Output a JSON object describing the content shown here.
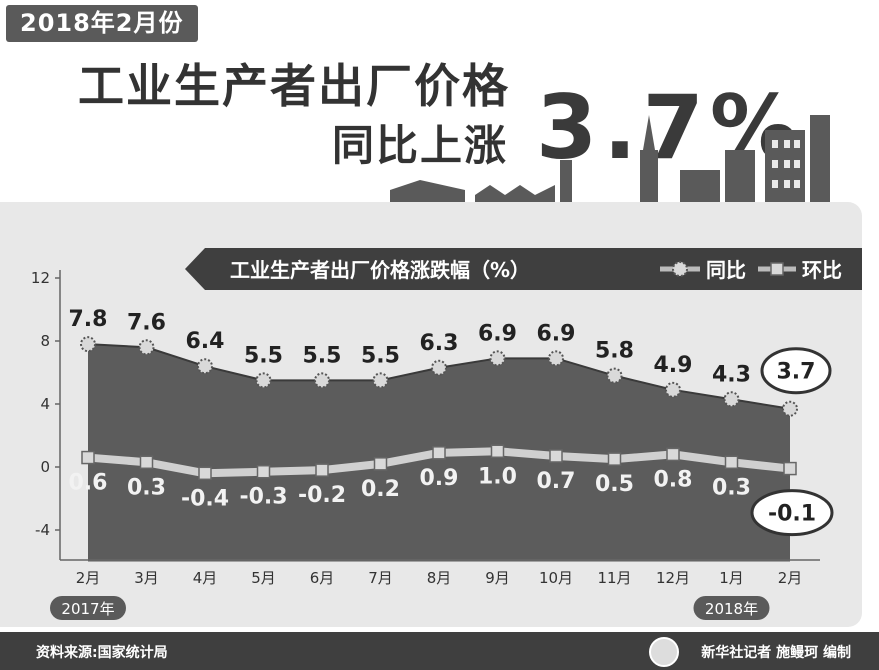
{
  "header": {
    "date_badge": "2018年2月份",
    "title_line1": "工业生产者出厂价格",
    "title_line2": "同比上涨",
    "title_value": "3.7%"
  },
  "legend": {
    "chart_title": "工业生产者出厂价格涨跌幅（%）",
    "yoy_label": "同比",
    "mom_label": "环比"
  },
  "year_labels": {
    "start": "2017年",
    "end": "2018年"
  },
  "footer": {
    "source": "资料来源:国家统计局",
    "credit": "新华社记者 施鳗珂 编制"
  },
  "colors": {
    "area_fill": "#5c5c5c",
    "panel_bg": "#e8e8e8",
    "marker_fill": "#d9d9d9",
    "mom_line": "#d0d0d0",
    "bottom_bar": "#3f3f3f"
  },
  "chart_data": {
    "type": "area",
    "categories": [
      "2月",
      "3月",
      "4月",
      "5月",
      "6月",
      "7月",
      "8月",
      "9月",
      "10月",
      "11月",
      "12月",
      "1月",
      "2月"
    ],
    "series": [
      {
        "name": "同比",
        "values": [
          7.8,
          7.6,
          6.4,
          5.5,
          5.5,
          5.5,
          6.3,
          6.9,
          6.9,
          5.8,
          4.9,
          4.3,
          3.7
        ],
        "labels": [
          "7.8",
          "7.6",
          "6.4",
          "5.5",
          "5.5",
          "5.5",
          "6.3",
          "6.9",
          "6.9",
          "5.8",
          "4.9",
          "4.3",
          "3.7"
        ]
      },
      {
        "name": "环比",
        "values": [
          0.6,
          0.3,
          -0.4,
          -0.3,
          -0.2,
          0.2,
          0.9,
          1.0,
          0.7,
          0.5,
          0.8,
          0.3,
          -0.1
        ],
        "labels": [
          "0.6",
          "0.3",
          "-0.4",
          "-0.3",
          "-0.2",
          "0.2",
          "0.9",
          "1.0",
          "0.7",
          "0.5",
          "0.8",
          "0.3",
          "-0.1"
        ]
      }
    ],
    "y_ticks": [
      "12",
      "8",
      "4",
      "0",
      "-4"
    ],
    "ylim": [
      -6,
      12
    ],
    "legend_position": "top-right",
    "grid": false
  }
}
